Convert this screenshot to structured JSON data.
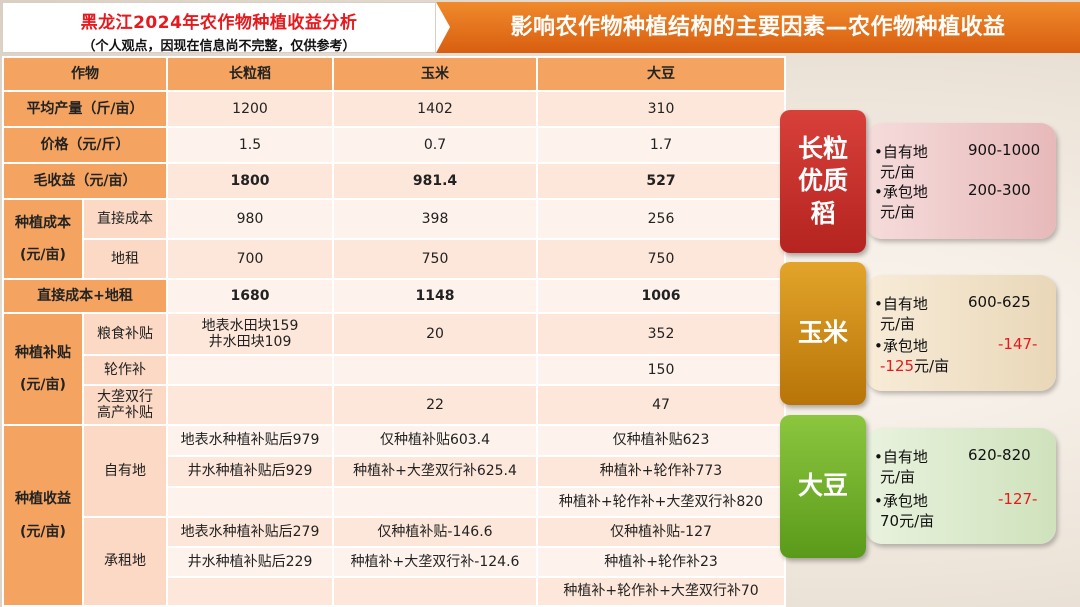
{
  "title": {
    "main": "黑龙江2024年农作物种植收益分析",
    "sub": "（个人观点，因现在信息尚不完整，仅供参考）"
  },
  "banner": "影响农作物种植结构的主要因素—农作物种植收益",
  "table": {
    "header": [
      "作物",
      "长粒稻",
      "玉米",
      "大豆"
    ],
    "avg_yield": {
      "label": "平均产量（斤/亩）",
      "values": [
        "1200",
        "1402",
        "310"
      ]
    },
    "price": {
      "label": "价格（元/斤）",
      "values": [
        "1.5",
        "0.7",
        "1.7"
      ]
    },
    "gross": {
      "label": "毛收益（元/亩）",
      "values": [
        "1800",
        "981.4",
        "527"
      ]
    },
    "cost": {
      "group_label_1": "种植成本",
      "group_label_2": "(元/亩)",
      "direct": {
        "label": "直接成本",
        "values": [
          "980",
          "398",
          "256"
        ]
      },
      "rent": {
        "label": "地租",
        "values": [
          "700",
          "750",
          "750"
        ]
      }
    },
    "cost_total": {
      "label": "直接成本+地租",
      "values": [
        "1680",
        "1148",
        "1006"
      ]
    },
    "subsidy": {
      "group_label_1": "种植补贴",
      "group_label_2": "(元/亩)",
      "grain": {
        "label": "粮食补贴",
        "rice_line1": "地表水田块159",
        "rice_line2": "井水田块109",
        "corn": "20",
        "soy": "352"
      },
      "rotation": {
        "label": "轮作补",
        "rice": "",
        "corn": "",
        "soy": "150"
      },
      "ridge": {
        "label_line1": "大垄双行",
        "label_line2": "高产补贴",
        "rice": "",
        "corn": "22",
        "soy": "47"
      }
    },
    "income": {
      "group_label_1": "种植收益",
      "group_label_2": "(元/亩)",
      "own": {
        "label": "自有地",
        "rows": [
          [
            "地表水种植补贴后979",
            "仅种植补贴603.4",
            "仅种植补贴623"
          ],
          [
            "井水种植补贴后929",
            "种植补+大垄双行补625.4",
            "种植补+轮作补773"
          ],
          [
            "",
            "",
            "种植补+轮作补+大垄双行补820"
          ]
        ]
      },
      "rented": {
        "label": "承租地",
        "rows": [
          [
            "地表水种植补贴后279",
            "仅种植补贴-146.6",
            "仅种植补贴-127"
          ],
          [
            "井水种植补贴后229",
            "种植补+大垄双行补-124.6",
            "种植补+轮作补23"
          ],
          [
            "",
            "",
            "种植补+轮作补+大垄双行补70"
          ]
        ]
      }
    }
  },
  "cards": {
    "rice": {
      "tag_line1": "长粒",
      "tag_line2": "优质",
      "tag_line3": "稻",
      "own_label": "•自有地",
      "own_range": "900-1000",
      "own_unit": "元/亩",
      "rent_label": "•承包地",
      "rent_range": "200-300",
      "rent_unit": "元/亩"
    },
    "corn": {
      "tag": "玉米",
      "own_label": "•自有地",
      "own_range": "600-625",
      "own_unit": "元/亩",
      "rent_label": "•承包地",
      "rent_range_a": "-147-",
      "rent_range_b": "-125",
      "rent_unit": "元/亩"
    },
    "soy": {
      "tag": "大豆",
      "own_label": "•自有地",
      "own_range": "620-820",
      "own_unit": "元/亩",
      "rent_label": "•承包地",
      "rent_range_a": "-127-",
      "rent_range_b": "70",
      "rent_unit": "元/亩"
    }
  },
  "colors": {
    "accent_orange": "#f4a460",
    "banner_orange": "#e2701a",
    "red": "#e8181c",
    "rice_red": "#c8302c",
    "corn_gold": "#c8860e",
    "soy_green": "#6aaa22"
  }
}
